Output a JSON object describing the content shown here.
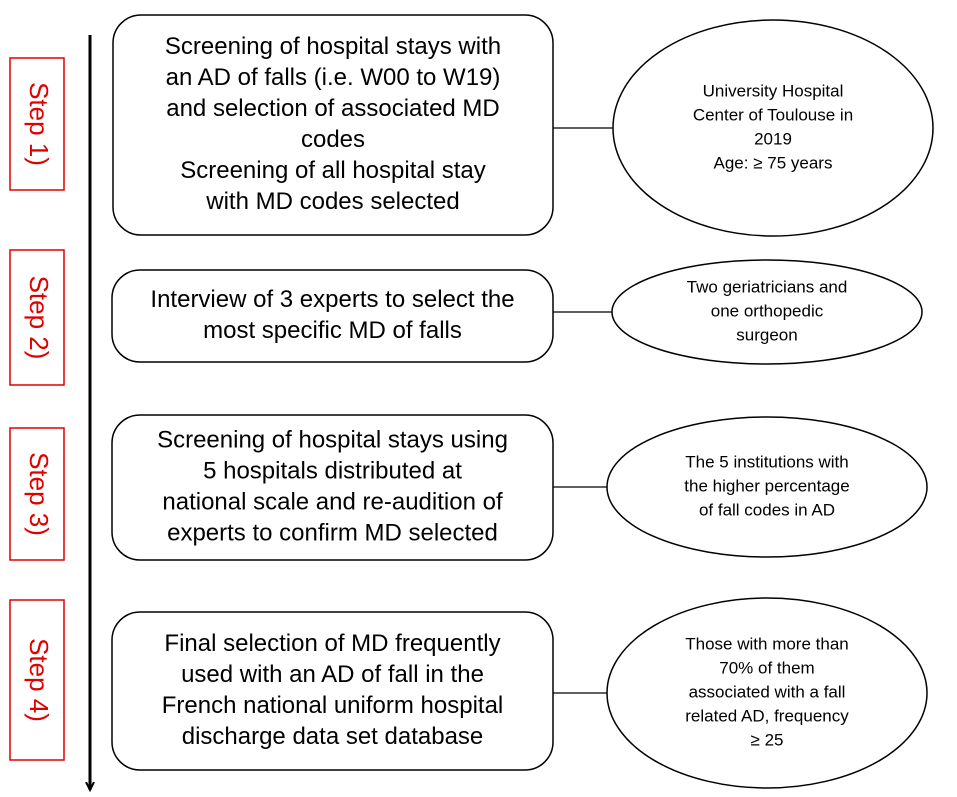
{
  "steps": [
    {
      "label": "Step 1)",
      "box": [
        "Screening of hospital stays with",
        "an AD of falls (i.e. W00 to W19)",
        "and selection of associated MD",
        "codes",
        "Screening of all hospital stay",
        "with MD codes selected"
      ],
      "note": [
        "University Hospital",
        "Center of Toulouse in",
        "2019",
        "Age: ≥ 75 years"
      ]
    },
    {
      "label": "Step 2)",
      "box": [
        "Interview of 3 experts to select the",
        "most specific MD of falls"
      ],
      "note": [
        "Two geriatricians and",
        "one orthopedic",
        "surgeon"
      ]
    },
    {
      "label": "Step 3)",
      "box": [
        "Screening of hospital stays using",
        "5 hospitals distributed at",
        "national scale and re-audition of",
        "experts to confirm MD selected"
      ],
      "note": [
        "The 5 institutions with",
        "the higher percentage",
        "of fall codes in AD"
      ]
    },
    {
      "label": "Step 4)",
      "box": [
        "Final selection of MD frequently",
        "used with an AD of fall in the",
        "French national uniform hospital",
        "discharge data set database"
      ],
      "note": [
        "Those with more than",
        "70% of them",
        "associated with a fall",
        "related AD, frequency",
        "≥ 25"
      ]
    }
  ]
}
